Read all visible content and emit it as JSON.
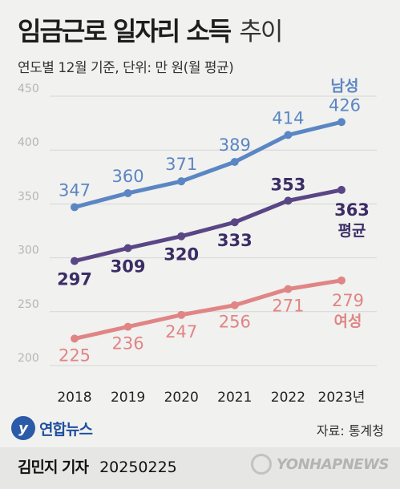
{
  "header": {
    "title": "임금근로 일자리 소득",
    "title_suffix": "추이",
    "subtitle": "연도별 12월 기준, 단위: 만 원(월 평균)"
  },
  "chart_data": {
    "type": "line",
    "categories": [
      "2018",
      "2019",
      "2020",
      "2021",
      "2022",
      "2023년"
    ],
    "ylim": [
      200,
      450
    ],
    "yticks": [
      200,
      250,
      300,
      350,
      400,
      450
    ],
    "grid": true,
    "series": [
      {
        "name": "남성",
        "values": [
          347,
          360,
          371,
          389,
          414,
          426
        ],
        "color": "#5b86c4",
        "label_color": "#5b86c4"
      },
      {
        "name": "평균",
        "values": [
          297,
          309,
          320,
          333,
          353,
          363
        ],
        "color": "#5a4585",
        "label_color": "#3b2d66"
      },
      {
        "name": "여성",
        "values": [
          225,
          236,
          247,
          256,
          271,
          279
        ],
        "color": "#e08585",
        "label_color": "#e08585"
      }
    ]
  },
  "footer": {
    "logo_text": "연합뉴스",
    "source": "자료: 통계청",
    "author": "김민지 기자",
    "date": "20250225",
    "watermark": "YONHAPNEWS"
  },
  "colors": {
    "background": "#f1f1ef",
    "grid": "#d6d6d6",
    "axis_label": "#b5b5b5"
  }
}
